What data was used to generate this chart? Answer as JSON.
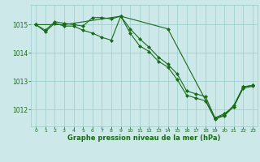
{
  "line1": {
    "x": [
      0,
      1,
      2,
      3,
      4,
      5,
      6,
      7,
      8,
      9,
      10,
      11,
      12,
      13,
      14,
      15,
      16,
      17,
      18,
      19,
      20,
      21,
      22,
      23
    ],
    "y": [
      1015.0,
      1014.8,
      1015.1,
      1015.05,
      1015.0,
      1014.95,
      1015.25,
      1015.25,
      1015.2,
      1015.3,
      1014.85,
      1014.5,
      1014.2,
      1013.85,
      1013.6,
      1013.25,
      1012.65,
      1012.55,
      1012.45,
      1011.7,
      1011.85,
      1012.1,
      1012.8,
      1012.85
    ]
  },
  "line2": {
    "x": [
      0,
      1,
      2,
      3,
      4,
      5,
      6,
      7,
      8,
      9,
      10,
      11,
      12,
      13,
      14,
      15,
      16,
      17,
      18,
      19,
      20,
      21,
      22,
      23
    ],
    "y": [
      1015.0,
      1014.75,
      1015.05,
      1014.95,
      1014.95,
      1014.8,
      1014.7,
      1014.55,
      1014.45,
      1015.3,
      1014.7,
      1014.25,
      1014.05,
      1013.7,
      1013.5,
      1013.05,
      1012.5,
      1012.4,
      1012.3,
      1011.65,
      1011.78,
      1012.1,
      1012.75,
      1012.82
    ]
  },
  "line3": {
    "x": [
      0,
      3,
      9,
      14,
      19,
      20,
      21,
      22,
      23
    ],
    "y": [
      1015.0,
      1015.0,
      1015.3,
      1014.85,
      1011.7,
      1011.8,
      1012.15,
      1012.8,
      1012.85
    ]
  },
  "bg_color": "#cce8e8",
  "grid_color": "#99cccc",
  "line_color": "#1a6b1a",
  "marker_color": "#1a6b1a",
  "xlabel": "Graphe pression niveau de la mer (hPa)",
  "xlabel_color": "#1a6b1a",
  "tick_color": "#1a6b1a",
  "ylim": [
    1011.4,
    1015.7
  ],
  "yticks": [
    1012,
    1013,
    1014,
    1015
  ],
  "xticks": [
    0,
    1,
    2,
    3,
    4,
    5,
    6,
    7,
    8,
    9,
    10,
    11,
    12,
    13,
    14,
    15,
    16,
    17,
    18,
    19,
    20,
    21,
    22,
    23
  ]
}
